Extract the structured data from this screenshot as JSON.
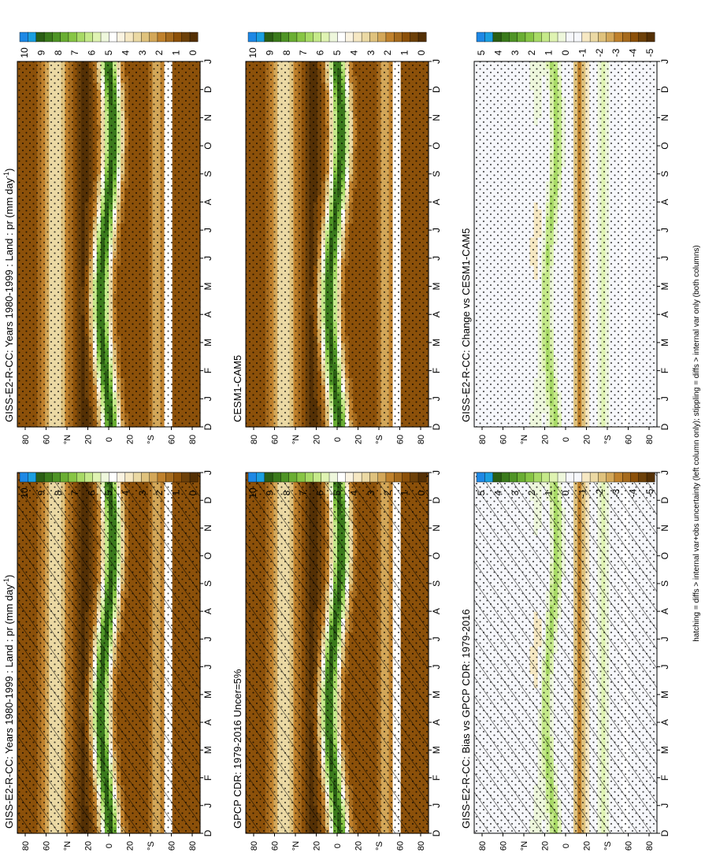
{
  "footnote": "hatching = diffs > internal var+obs uncertainty (left column only); stippling = diffs > internal var only (both columns)",
  "month_labels": [
    "D",
    "J",
    "F",
    "M",
    "A",
    "M",
    "J",
    "J",
    "A",
    "S",
    "O",
    "N",
    "D",
    "J"
  ],
  "lat_labels": [
    "80",
    "60",
    "°N",
    "20",
    "0",
    "20",
    "°S",
    "60",
    "80"
  ],
  "colors": {
    "abs": [
      "#543005",
      "#6d410a",
      "#8c510a",
      "#a66b1e",
      "#bf812d",
      "#d3a759",
      "#dfc27d",
      "#ebd9a4",
      "#f6e8c3",
      "#faf3e1",
      "#ffffff",
      "#eef7dc",
      "#dff3b2",
      "#c5e98a",
      "#a8da66",
      "#87c545",
      "#6aae33",
      "#4f9426",
      "#3b7a1c",
      "#2b5e14",
      "#1b9fe0",
      "#1e88e5"
    ],
    "diff": [
      "#543005",
      "#6d410a",
      "#8c510a",
      "#a66b1e",
      "#bf812d",
      "#d3a759",
      "#dfc27d",
      "#ebd9a4",
      "#f6e8c3",
      "#f6f7fb",
      "#f6f7fb",
      "#eef7dc",
      "#dff3b2",
      "#c5e98a",
      "#a8da66",
      "#87c545",
      "#6aae33",
      "#4f9426",
      "#3b7a1c",
      "#2b5e14",
      "#1b9fe0",
      "#1e88e5"
    ],
    "masked": "#ffffff"
  },
  "panels": [
    {
      "id": "left-top",
      "title": "GISS-E2-R-CC: Years 1980-1999 : Land : pr (mm day",
      "title_sup": "-1",
      "title_end": ")",
      "kind": "abs",
      "hatch": true,
      "stipple": true,
      "colorbar_ticks": [
        "10",
        "9",
        "8",
        "7",
        "6",
        "5",
        "4",
        "3",
        "2",
        "1",
        "0"
      ]
    },
    {
      "id": "right-top",
      "title": "GISS-E2-R-CC: Years 1980-1999 : Land : pr (mm day",
      "title_sup": "-1",
      "title_end": ")",
      "kind": "abs",
      "hatch": false,
      "stipple": true,
      "colorbar_ticks": [
        "10",
        "9",
        "8",
        "7",
        "6",
        "5",
        "4",
        "3",
        "2",
        "1",
        "0"
      ]
    },
    {
      "id": "left-mid",
      "title": "GPCP CDR: 1979-2016 Uncer=5%",
      "title_sup": "",
      "title_end": "",
      "kind": "abs",
      "hatch": true,
      "stipple": true,
      "colorbar_ticks": [
        "10",
        "9",
        "8",
        "7",
        "6",
        "5",
        "4",
        "3",
        "2",
        "1",
        "0"
      ]
    },
    {
      "id": "right-mid",
      "title": "CESM1-CAM5",
      "title_sup": "",
      "title_end": "",
      "kind": "abs",
      "hatch": false,
      "stipple": true,
      "colorbar_ticks": [
        "10",
        "9",
        "8",
        "7",
        "6",
        "5",
        "4",
        "3",
        "2",
        "1",
        "0"
      ]
    },
    {
      "id": "left-bot",
      "title": "GISS-E2-R-CC: Bias vs GPCP CDR: 1979-2016",
      "title_sup": "",
      "title_end": "",
      "kind": "diff",
      "hatch": true,
      "stipple": true,
      "colorbar_ticks": [
        "5",
        "4",
        "3",
        "2",
        "1",
        "0",
        "-1",
        "-2",
        "-3",
        "-4",
        "-5"
      ]
    },
    {
      "id": "right-bot",
      "title": "GISS-E2-R-CC: Change vs CESM1-CAM5",
      "title_sup": "",
      "title_end": "",
      "kind": "diff",
      "hatch": false,
      "stipple": true,
      "colorbar_ticks": [
        "5",
        "4",
        "3",
        "2",
        "1",
        "0",
        "-1",
        "-2",
        "-3",
        "-4",
        "-5"
      ]
    }
  ]
}
